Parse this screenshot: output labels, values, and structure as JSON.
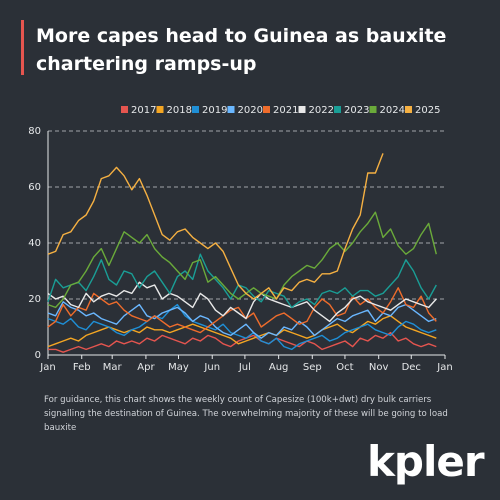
{
  "chart_data": {
    "type": "line",
    "title": "More capes head to Guinea as bauxite chartering ramps-up",
    "note": "For guidance, this chart shows the weekly count of Capesize (100k+dwt) dry bulk carriers signalling the destination of Guinea. The overwhelming majority of these will be going to load bauxite",
    "x": [
      0,
      1,
      2,
      3,
      4,
      5,
      6,
      7,
      8,
      9,
      10,
      11,
      12,
      13,
      14,
      15,
      16,
      17,
      18,
      19,
      20,
      21,
      22,
      23,
      24,
      25,
      26,
      27,
      28,
      29,
      30,
      31,
      32,
      33,
      34,
      35,
      36,
      37,
      38,
      39,
      40,
      41,
      42,
      43,
      44,
      45,
      46,
      47,
      48,
      49,
      50,
      51
    ],
    "xlim": [
      0,
      52.14
    ],
    "xticks": [
      {
        "value": 0,
        "label": "Jan"
      },
      {
        "value": 4.43,
        "label": "Feb"
      },
      {
        "value": 8.43,
        "label": "Mar"
      },
      {
        "value": 12.86,
        "label": "Apr"
      },
      {
        "value": 17.14,
        "label": "May"
      },
      {
        "value": 21.57,
        "label": "Jun"
      },
      {
        "value": 25.86,
        "label": "Jul"
      },
      {
        "value": 30.29,
        "label": "Aug"
      },
      {
        "value": 34.71,
        "label": "Sep"
      },
      {
        "value": 39,
        "label": "Oct"
      },
      {
        "value": 43.43,
        "label": "Nov"
      },
      {
        "value": 47.71,
        "label": "Dec"
      },
      {
        "value": 52.14,
        "label": "Jan"
      }
    ],
    "ylim": [
      0,
      80
    ],
    "yticks": [
      0,
      20,
      40,
      60,
      80
    ],
    "grid": true,
    "series": [
      {
        "name": "2017",
        "color": "#e5554f",
        "values": [
          2,
          2,
          1,
          2,
          3,
          2,
          3,
          4,
          3,
          5,
          4,
          5,
          4,
          6,
          5,
          7,
          6,
          5,
          4,
          6,
          5,
          7,
          6,
          4,
          3,
          5,
          6,
          7,
          5,
          4,
          6,
          5,
          4,
          3,
          5,
          4,
          2,
          3,
          4,
          5,
          3,
          6,
          5,
          7,
          6,
          8,
          5,
          6,
          4,
          3,
          4,
          3
        ]
      },
      {
        "name": "2018",
        "color": "#f4a623",
        "values": [
          3,
          4,
          5,
          6,
          5,
          7,
          8,
          9,
          10,
          9,
          8,
          9,
          8,
          10,
          9,
          9,
          8,
          9,
          10,
          11,
          10,
          9,
          8,
          7,
          6,
          4,
          5,
          6,
          7,
          8,
          7,
          9,
          8,
          7,
          6,
          7,
          9,
          10,
          11,
          9,
          8,
          10,
          12,
          11,
          13,
          14,
          12,
          10,
          9,
          8,
          7,
          6
        ]
      },
      {
        "name": "2019",
        "color": "#1f8fd6",
        "values": [
          13,
          12,
          11,
          13,
          10,
          9,
          12,
          11,
          10,
          8,
          7,
          9,
          10,
          12,
          14,
          13,
          16,
          18,
          14,
          12,
          11,
          10,
          9,
          11,
          8,
          7,
          6,
          8,
          5,
          4,
          6,
          3,
          2,
          4,
          5,
          6,
          7,
          5,
          6,
          8,
          9,
          10,
          11,
          9,
          8,
          7,
          10,
          12,
          11,
          9,
          8,
          9
        ]
      },
      {
        "name": "2020",
        "color": "#6ab7ff",
        "values": [
          15,
          14,
          19,
          17,
          16,
          14,
          15,
          13,
          12,
          11,
          14,
          16,
          18,
          14,
          13,
          15,
          16,
          17,
          15,
          12,
          14,
          13,
          10,
          8,
          7,
          9,
          11,
          8,
          6,
          8,
          7,
          10,
          9,
          12,
          10,
          7,
          9,
          11,
          13,
          12,
          14,
          15,
          16,
          12,
          15,
          14,
          17,
          18,
          16,
          14,
          12,
          13
        ]
      },
      {
        "name": "2021",
        "color": "#ee6c2c",
        "values": [
          10,
          12,
          18,
          14,
          17,
          16,
          22,
          20,
          18,
          19,
          16,
          14,
          13,
          12,
          14,
          12,
          10,
          11,
          10,
          9,
          8,
          10,
          12,
          14,
          16,
          17,
          13,
          15,
          10,
          12,
          14,
          15,
          13,
          11,
          12,
          17,
          20,
          18,
          14,
          15,
          21,
          18,
          20,
          17,
          15,
          19,
          24,
          18,
          17,
          21,
          15,
          12
        ]
      },
      {
        "name": "2022",
        "color": "#e8e8e8",
        "values": [
          22,
          20,
          21,
          18,
          17,
          22,
          19,
          21,
          22,
          21,
          23,
          22,
          26,
          24,
          25,
          20,
          22,
          21,
          19,
          17,
          22,
          20,
          16,
          14,
          17,
          15,
          13,
          19,
          22,
          20,
          19,
          18,
          17,
          18,
          19,
          16,
          14,
          12,
          15,
          17,
          20,
          21,
          19,
          18,
          17,
          16,
          18,
          20,
          19,
          18,
          17,
          20
        ]
      },
      {
        "name": "2023",
        "color": "#1a9e96",
        "values": [
          19,
          27,
          24,
          25,
          26,
          23,
          28,
          34,
          27,
          25,
          30,
          29,
          24,
          28,
          30,
          26,
          22,
          28,
          30,
          27,
          36,
          30,
          27,
          24,
          20,
          25,
          24,
          21,
          19,
          23,
          22,
          21,
          17,
          19,
          20,
          18,
          22,
          23,
          22,
          24,
          21,
          23,
          23,
          21,
          22,
          25,
          28,
          34,
          30,
          24,
          20,
          25
        ]
      },
      {
        "name": "2024",
        "color": "#6aaa3a",
        "values": [
          18,
          17,
          20,
          25,
          26,
          30,
          35,
          38,
          32,
          38,
          44,
          42,
          40,
          43,
          38,
          35,
          33,
          30,
          27,
          33,
          34,
          26,
          28,
          25,
          22,
          20,
          22,
          24,
          22,
          21,
          20,
          25,
          28,
          30,
          32,
          31,
          34,
          38,
          40,
          37,
          40,
          44,
          47,
          51,
          42,
          45,
          39,
          36,
          38,
          43,
          47,
          36
        ]
      },
      {
        "name": "2025",
        "color": "#f5b042",
        "values": [
          36,
          37,
          43,
          44,
          48,
          50,
          55,
          63,
          64,
          67,
          64,
          59,
          63,
          57,
          50,
          43,
          41,
          44,
          45,
          42,
          40,
          38,
          40,
          37,
          31,
          25,
          22,
          20,
          22,
          24,
          20,
          24,
          23,
          26,
          27,
          26,
          29,
          29,
          30,
          38,
          45,
          50,
          65,
          65,
          72,
          null,
          null,
          null,
          null,
          null,
          null,
          null
        ]
      }
    ]
  },
  "logo": "kpler"
}
